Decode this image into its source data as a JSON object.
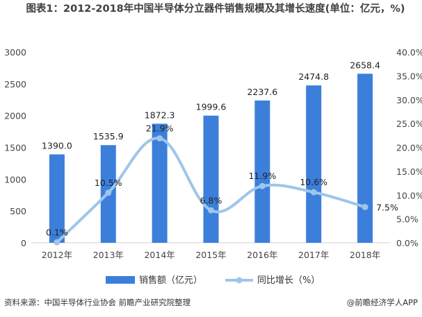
{
  "chart_data": {
    "type": "bar",
    "title": "图表1：2012-2018年中国半导体分立器件销售规模及其增长速度(单位：亿元，%)",
    "categories": [
      "2012年",
      "2013年",
      "2014年",
      "2015年",
      "2016年",
      "2017年",
      "2018年"
    ],
    "series": [
      {
        "name": "销售额（亿元）",
        "type": "bar",
        "axis": "left",
        "color": "#3b7fdb",
        "values": [
          1390.0,
          1535.9,
          1872.3,
          1999.6,
          2237.6,
          2474.8,
          2658.4
        ],
        "labels": [
          "1390.0",
          "1535.9",
          "1872.3",
          "1999.6",
          "2237.6",
          "2474.8",
          "2658.4"
        ]
      },
      {
        "name": "同比增长（%）",
        "type": "line",
        "axis": "right",
        "color": "#9fc5ea",
        "values": [
          0.1,
          10.5,
          21.9,
          6.8,
          11.9,
          10.6,
          7.5
        ],
        "labels": [
          "0.1%",
          "10.5%",
          "21.9%",
          "6.8%",
          "11.9%",
          "10.6%",
          "7.5%"
        ]
      }
    ],
    "y_left": {
      "lim": [
        0,
        3000
      ],
      "ticks": [
        "0",
        "500",
        "1000",
        "1500",
        "2000",
        "2500",
        "3000"
      ],
      "tick_values": [
        0,
        500,
        1000,
        1500,
        2000,
        2500,
        3000
      ]
    },
    "y_right": {
      "lim": [
        0,
        40
      ],
      "ticks": [
        "0.0%",
        "5.0%",
        "10.0%",
        "15.0%",
        "20.0%",
        "25.0%",
        "30.0%",
        "35.0%",
        "40.0%"
      ],
      "tick_values": [
        0,
        5,
        10,
        15,
        20,
        25,
        30,
        35,
        40
      ]
    },
    "grid": false,
    "legend": "bottom-center"
  },
  "footer": {
    "source": "资料来源：中国半导体行业协会 前瞻产业研究院整理",
    "brand": "@前瞻经济学人APP"
  }
}
